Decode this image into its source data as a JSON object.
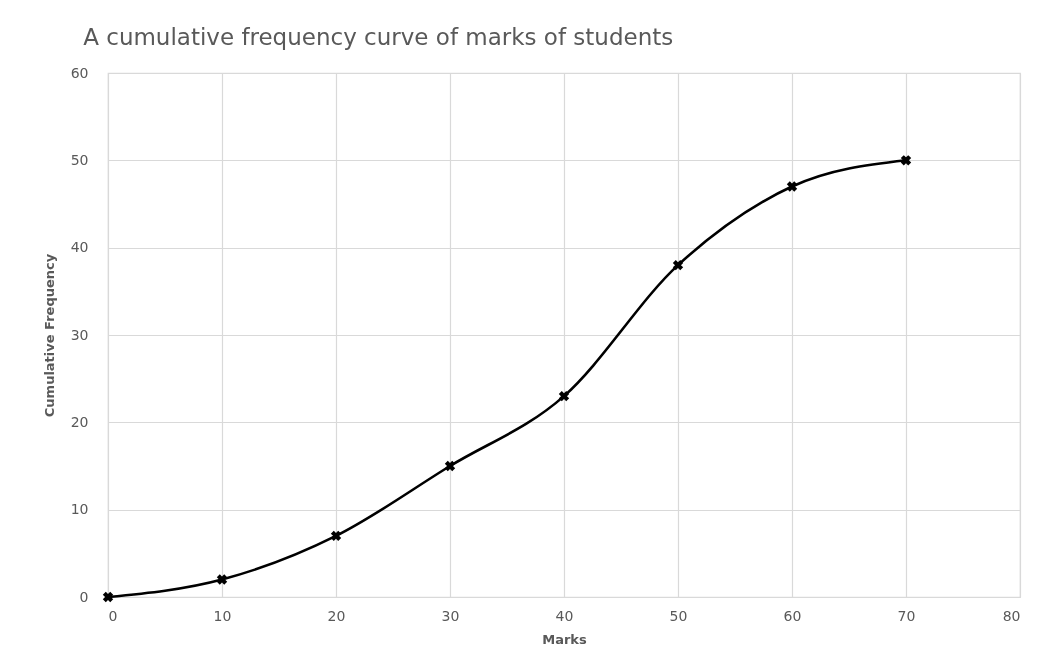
{
  "chart_data": {
    "type": "line",
    "title": "A cumulative frequency curve of marks of students",
    "xlabel": "Marks",
    "ylabel": "Cumulative Frequency",
    "x": [
      0,
      10,
      20,
      30,
      40,
      50,
      60,
      70
    ],
    "series": [
      {
        "color": "#000000",
        "values": [
          0,
          2,
          7,
          15,
          23,
          38,
          47,
          50
        ]
      }
    ],
    "xlim": [
      0,
      80
    ],
    "xticks": [
      0,
      10,
      20,
      30,
      40,
      50,
      60,
      70,
      80
    ],
    "ylim": [
      0,
      60
    ],
    "yticks": [
      0,
      10,
      20,
      30,
      40,
      50,
      60
    ],
    "grid": true,
    "marker": "cross",
    "line_style": "solid"
  }
}
